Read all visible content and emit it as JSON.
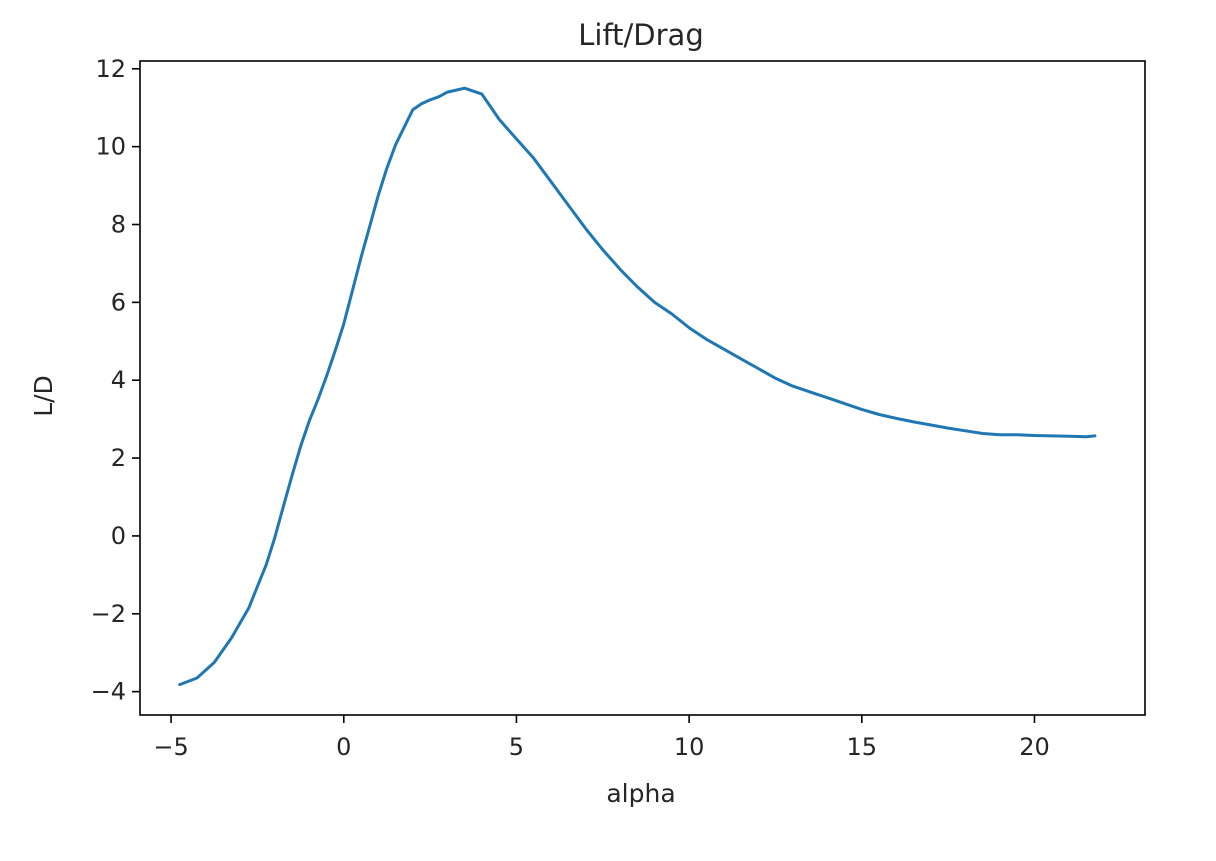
{
  "chart_data": {
    "type": "line",
    "title": "Lift/Drag",
    "xlabel": "alpha",
    "ylabel": "L/D",
    "xlim": [
      -5.9,
      23.2
    ],
    "ylim": [
      -4.6,
      12.2
    ],
    "xticks": [
      -5,
      0,
      5,
      10,
      15,
      20
    ],
    "xtick_labels": [
      "−5",
      "0",
      "5",
      "10",
      "15",
      "20"
    ],
    "yticks": [
      -4,
      -2,
      0,
      2,
      4,
      6,
      8,
      10,
      12
    ],
    "ytick_labels": [
      "−4",
      "−2",
      "0",
      "2",
      "4",
      "6",
      "8",
      "10",
      "12"
    ],
    "grid": false,
    "legend": "none",
    "series": [
      {
        "color": "#1f77b4",
        "x": [
          -4.75,
          -4.25,
          -3.75,
          -3.25,
          -2.75,
          -2.5,
          -2.25,
          -2.0,
          -1.75,
          -1.5,
          -1.25,
          -1.0,
          -0.75,
          -0.5,
          -0.25,
          0.0,
          0.25,
          0.5,
          0.75,
          1.0,
          1.25,
          1.5,
          1.75,
          2.0,
          2.25,
          2.5,
          2.75,
          3.0,
          3.5,
          4.0,
          4.5,
          5.0,
          5.5,
          6.0,
          6.5,
          7.0,
          7.5,
          8.0,
          8.5,
          9.0,
          9.5,
          10.0,
          10.5,
          11.0,
          11.5,
          12.0,
          12.5,
          13.0,
          13.5,
          14.0,
          14.5,
          15.0,
          15.5,
          16.0,
          16.5,
          17.0,
          17.5,
          18.0,
          18.5,
          19.0,
          19.5,
          20.0,
          20.5,
          21.0,
          21.5,
          21.75
        ],
        "y": [
          -3.82,
          -3.65,
          -3.25,
          -2.62,
          -1.85,
          -1.3,
          -0.75,
          -0.05,
          0.75,
          1.55,
          2.3,
          2.95,
          3.5,
          4.1,
          4.75,
          5.45,
          6.3,
          7.15,
          7.95,
          8.75,
          9.45,
          10.05,
          10.5,
          10.95,
          11.1,
          11.2,
          11.28,
          11.4,
          11.5,
          11.35,
          10.7,
          10.2,
          9.7,
          9.1,
          8.5,
          7.9,
          7.35,
          6.85,
          6.4,
          6.0,
          5.7,
          5.35,
          5.05,
          4.8,
          4.55,
          4.3,
          4.05,
          3.85,
          3.7,
          3.55,
          3.4,
          3.25,
          3.12,
          3.02,
          2.93,
          2.85,
          2.77,
          2.7,
          2.63,
          2.6,
          2.6,
          2.58,
          2.57,
          2.56,
          2.55,
          2.57
        ]
      }
    ]
  }
}
